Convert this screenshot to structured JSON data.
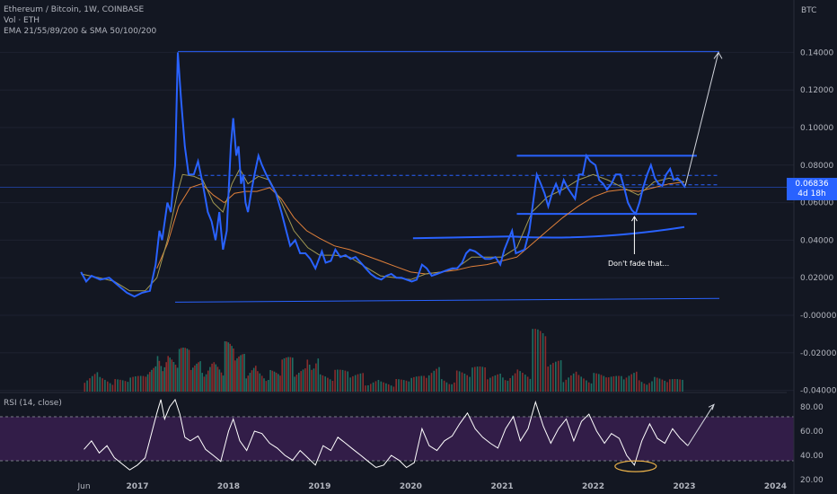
{
  "header": {
    "symbol_line": "Ethereum / Bitcoin, 1W, COINBASE",
    "volume_line": "Vol · ETH",
    "ma_line": "EMA 21/55/89/200 & SMA 50/100/200"
  },
  "rsi_pane": {
    "label": "RSI (14, close)"
  },
  "price_axis": {
    "currency": "BTC"
  },
  "last_price": {
    "value": "0.06836",
    "countdown": "4d 18h"
  },
  "annotation": {
    "text": "Don't fade that..."
  },
  "colors": {
    "background": "#131722",
    "price_line": "#2962ff",
    "ema_orange": "#e0803a",
    "ema_olive": "#a39a52",
    "vol_up": "#1f6e63",
    "vol_down": "#8a2c2c",
    "rsi_line": "#ffffff",
    "rsi_band": "#3b1f52",
    "drawings": "#2962ff",
    "circle": "#e8b04a"
  },
  "chart_data": {
    "type": "line",
    "x_axis_labels": [
      "Jun",
      "2017",
      "2018",
      "2019",
      "2020",
      "2021",
      "2022",
      "2023",
      "2024"
    ],
    "x_axis_dates": [
      "2016-06-01",
      "2017-01-01",
      "2018-01-01",
      "2019-01-01",
      "2020-01-01",
      "2021-01-01",
      "2022-01-01",
      "2023-01-01",
      "2024-01-01"
    ],
    "y_axis_ticks": [
      "0.14000",
      "0.12000",
      "0.10000",
      "0.08000",
      "0.06000",
      "0.04000",
      "0.02000",
      "-0.00000",
      "-0.02000",
      "-0.04000"
    ],
    "y_ticks": [
      0.14,
      0.12,
      0.1,
      0.08,
      0.06,
      0.04,
      0.02,
      0.0,
      -0.02,
      -0.04
    ],
    "rsi_axis_ticks": [
      "80.00",
      "60.00",
      "40.00",
      "20.00"
    ],
    "rsi_ticks": [
      80,
      60,
      40,
      20
    ],
    "rsi_bands": [
      70,
      30
    ],
    "price_series": [
      [
        "2016-05-20",
        0.023
      ],
      [
        "2016-06-10",
        0.018
      ],
      [
        "2016-07-01",
        0.021
      ],
      [
        "2016-08-05",
        0.019
      ],
      [
        "2016-09-10",
        0.02
      ],
      [
        "2016-10-15",
        0.016
      ],
      [
        "2016-11-20",
        0.012
      ],
      [
        "2016-12-20",
        0.01
      ],
      [
        "2017-01-20",
        0.012
      ],
      [
        "2017-02-20",
        0.013
      ],
      [
        "2017-03-15",
        0.027
      ],
      [
        "2017-03-30",
        0.045
      ],
      [
        "2017-04-10",
        0.04
      ],
      [
        "2017-05-01",
        0.06
      ],
      [
        "2017-05-15",
        0.055
      ],
      [
        "2017-06-01",
        0.08
      ],
      [
        "2017-06-12",
        0.14
      ],
      [
        "2017-06-25",
        0.115
      ],
      [
        "2017-07-10",
        0.09
      ],
      [
        "2017-07-25",
        0.075
      ],
      [
        "2017-08-15",
        0.075
      ],
      [
        "2017-09-01",
        0.082
      ],
      [
        "2017-09-20",
        0.07
      ],
      [
        "2017-10-10",
        0.055
      ],
      [
        "2017-10-25",
        0.05
      ],
      [
        "2017-11-10",
        0.04
      ],
      [
        "2017-11-25",
        0.055
      ],
      [
        "2017-12-10",
        0.035
      ],
      [
        "2017-12-25",
        0.045
      ],
      [
        "2018-01-10",
        0.09
      ],
      [
        "2018-01-20",
        0.105
      ],
      [
        "2018-02-01",
        0.085
      ],
      [
        "2018-02-10",
        0.09
      ],
      [
        "2018-02-20",
        0.07
      ],
      [
        "2018-03-01",
        0.075
      ],
      [
        "2018-03-10",
        0.06
      ],
      [
        "2018-03-20",
        0.055
      ],
      [
        "2018-04-01",
        0.065
      ],
      [
        "2018-04-15",
        0.075
      ],
      [
        "2018-05-01",
        0.085
      ],
      [
        "2018-05-15",
        0.08
      ],
      [
        "2018-06-01",
        0.075
      ],
      [
        "2018-06-20",
        0.07
      ],
      [
        "2018-07-10",
        0.065
      ],
      [
        "2018-08-01",
        0.055
      ],
      [
        "2018-08-20",
        0.045
      ],
      [
        "2018-09-05",
        0.037
      ],
      [
        "2018-09-25",
        0.04
      ],
      [
        "2018-10-15",
        0.033
      ],
      [
        "2018-11-05",
        0.033
      ],
      [
        "2018-11-25",
        0.03
      ],
      [
        "2018-12-15",
        0.025
      ],
      [
        "2019-01-10",
        0.034
      ],
      [
        "2019-01-25",
        0.028
      ],
      [
        "2019-02-15",
        0.029
      ],
      [
        "2019-03-05",
        0.035
      ],
      [
        "2019-03-25",
        0.031
      ],
      [
        "2019-04-15",
        0.032
      ],
      [
        "2019-05-05",
        0.03
      ],
      [
        "2019-05-25",
        0.031
      ],
      [
        "2019-06-15",
        0.028
      ],
      [
        "2019-07-05",
        0.025
      ],
      [
        "2019-07-25",
        0.022
      ],
      [
        "2019-08-15",
        0.02
      ],
      [
        "2019-09-05",
        0.019
      ],
      [
        "2019-09-25",
        0.021
      ],
      [
        "2019-10-15",
        0.022
      ],
      [
        "2019-11-05",
        0.02
      ],
      [
        "2019-11-25",
        0.02
      ],
      [
        "2019-12-15",
        0.019
      ],
      [
        "2020-01-05",
        0.018
      ],
      [
        "2020-01-25",
        0.019
      ],
      [
        "2020-02-15",
        0.027
      ],
      [
        "2020-03-05",
        0.025
      ],
      [
        "2020-03-25",
        0.021
      ],
      [
        "2020-04-15",
        0.022
      ],
      [
        "2020-05-05",
        0.023
      ],
      [
        "2020-05-25",
        0.024
      ],
      [
        "2020-06-15",
        0.025
      ],
      [
        "2020-07-05",
        0.025
      ],
      [
        "2020-07-25",
        0.028
      ],
      [
        "2020-08-10",
        0.033
      ],
      [
        "2020-08-25",
        0.035
      ],
      [
        "2020-09-15",
        0.034
      ],
      [
        "2020-10-05",
        0.032
      ],
      [
        "2020-10-25",
        0.03
      ],
      [
        "2020-11-15",
        0.03
      ],
      [
        "2020-12-05",
        0.031
      ],
      [
        "2020-12-25",
        0.027
      ],
      [
        "2021-01-10",
        0.035
      ],
      [
        "2021-01-25",
        0.04
      ],
      [
        "2021-02-10",
        0.045
      ],
      [
        "2021-02-25",
        0.033
      ],
      [
        "2021-03-15",
        0.034
      ],
      [
        "2021-04-01",
        0.035
      ],
      [
        "2021-04-20",
        0.045
      ],
      [
        "2021-05-05",
        0.06
      ],
      [
        "2021-05-20",
        0.075
      ],
      [
        "2021-06-05",
        0.07
      ],
      [
        "2021-06-20",
        0.065
      ],
      [
        "2021-07-05",
        0.058
      ],
      [
        "2021-07-20",
        0.065
      ],
      [
        "2021-08-05",
        0.07
      ],
      [
        "2021-08-20",
        0.065
      ],
      [
        "2021-09-05",
        0.072
      ],
      [
        "2021-09-20",
        0.068
      ],
      [
        "2021-10-05",
        0.065
      ],
      [
        "2021-10-20",
        0.062
      ],
      [
        "2021-11-05",
        0.075
      ],
      [
        "2021-11-20",
        0.075
      ],
      [
        "2021-12-05",
        0.085
      ],
      [
        "2021-12-20",
        0.082
      ],
      [
        "2022-01-10",
        0.08
      ],
      [
        "2022-01-25",
        0.072
      ],
      [
        "2022-02-10",
        0.07
      ],
      [
        "2022-02-25",
        0.067
      ],
      [
        "2022-03-15",
        0.07
      ],
      [
        "2022-04-01",
        0.075
      ],
      [
        "2022-04-20",
        0.075
      ],
      [
        "2022-05-05",
        0.068
      ],
      [
        "2022-05-20",
        0.06
      ],
      [
        "2022-06-05",
        0.056
      ],
      [
        "2022-06-20",
        0.054
      ],
      [
        "2022-07-05",
        0.06
      ],
      [
        "2022-07-20",
        0.068
      ],
      [
        "2022-08-05",
        0.075
      ],
      [
        "2022-08-20",
        0.08
      ],
      [
        "2022-09-05",
        0.073
      ],
      [
        "2022-09-20",
        0.07
      ],
      [
        "2022-10-05",
        0.069
      ],
      [
        "2022-10-20",
        0.075
      ],
      [
        "2022-11-05",
        0.078
      ],
      [
        "2022-11-20",
        0.072
      ],
      [
        "2022-12-05",
        0.073
      ],
      [
        "2022-12-20",
        0.071
      ],
      [
        "2023-01-05",
        0.068
      ]
    ],
    "moving_average_slow": [
      [
        "2017-03-20",
        0.025
      ],
      [
        "2017-05-01",
        0.038
      ],
      [
        "2017-06-15",
        0.058
      ],
      [
        "2017-08-01",
        0.068
      ],
      [
        "2017-09-15",
        0.07
      ],
      [
        "2017-11-01",
        0.064
      ],
      [
        "2017-12-15",
        0.06
      ],
      [
        "2018-01-25",
        0.065
      ],
      [
        "2018-03-10",
        0.066
      ],
      [
        "2018-04-25",
        0.066
      ],
      [
        "2018-06-15",
        0.068
      ],
      [
        "2018-08-01",
        0.062
      ],
      [
        "2018-09-20",
        0.052
      ],
      [
        "2018-11-10",
        0.045
      ],
      [
        "2019-01-01",
        0.041
      ],
      [
        "2019-03-01",
        0.037
      ],
      [
        "2019-05-01",
        0.035
      ],
      [
        "2019-07-01",
        0.032
      ],
      [
        "2019-09-01",
        0.029
      ],
      [
        "2019-11-01",
        0.026
      ],
      [
        "2020-01-01",
        0.023
      ],
      [
        "2020-03-01",
        0.022
      ],
      [
        "2020-05-01",
        0.023
      ],
      [
        "2020-07-01",
        0.024
      ],
      [
        "2020-09-01",
        0.026
      ],
      [
        "2020-11-01",
        0.027
      ],
      [
        "2021-01-01",
        0.029
      ],
      [
        "2021-03-01",
        0.031
      ],
      [
        "2021-05-01",
        0.038
      ],
      [
        "2021-07-01",
        0.045
      ],
      [
        "2021-09-01",
        0.052
      ],
      [
        "2021-11-01",
        0.058
      ],
      [
        "2022-01-01",
        0.063
      ],
      [
        "2022-03-01",
        0.066
      ],
      [
        "2022-05-01",
        0.067
      ],
      [
        "2022-07-01",
        0.066
      ],
      [
        "2022-09-01",
        0.068
      ],
      [
        "2022-11-01",
        0.07
      ],
      [
        "2023-01-01",
        0.071
      ]
    ],
    "moving_average_fast": [
      [
        "2016-05-20",
        0.022
      ],
      [
        "2016-08-01",
        0.02
      ],
      [
        "2016-10-01",
        0.018
      ],
      [
        "2016-12-01",
        0.013
      ],
      [
        "2017-02-01",
        0.013
      ],
      [
        "2017-03-20",
        0.02
      ],
      [
        "2017-05-01",
        0.04
      ],
      [
        "2017-06-10",
        0.065
      ],
      [
        "2017-07-01",
        0.075
      ],
      [
        "2017-08-15",
        0.074
      ],
      [
        "2017-09-20",
        0.072
      ],
      [
        "2017-11-01",
        0.06
      ],
      [
        "2017-12-10",
        0.055
      ],
      [
        "2018-01-15",
        0.07
      ],
      [
        "2018-02-15",
        0.078
      ],
      [
        "2018-03-20",
        0.07
      ],
      [
        "2018-05-01",
        0.074
      ],
      [
        "2018-06-15",
        0.072
      ],
      [
        "2018-08-01",
        0.06
      ],
      [
        "2018-09-20",
        0.045
      ],
      [
        "2018-11-15",
        0.036
      ],
      [
        "2019-01-01",
        0.032
      ],
      [
        "2019-03-01",
        0.032
      ],
      [
        "2019-05-01",
        0.031
      ],
      [
        "2019-07-01",
        0.026
      ],
      [
        "2019-09-01",
        0.021
      ],
      [
        "2019-11-01",
        0.02
      ],
      [
        "2020-01-01",
        0.019
      ],
      [
        "2020-03-01",
        0.022
      ],
      [
        "2020-05-01",
        0.023
      ],
      [
        "2020-07-01",
        0.025
      ],
      [
        "2020-09-01",
        0.031
      ],
      [
        "2020-11-01",
        0.031
      ],
      [
        "2021-01-01",
        0.031
      ],
      [
        "2021-03-01",
        0.036
      ],
      [
        "2021-05-01",
        0.055
      ],
      [
        "2021-07-01",
        0.063
      ],
      [
        "2021-09-01",
        0.067
      ],
      [
        "2021-11-01",
        0.072
      ],
      [
        "2022-01-01",
        0.075
      ],
      [
        "2022-03-01",
        0.072
      ],
      [
        "2022-05-01",
        0.068
      ],
      [
        "2022-07-01",
        0.064
      ],
      [
        "2022-09-01",
        0.071
      ],
      [
        "2022-11-01",
        0.073
      ],
      [
        "2023-01-01",
        0.071
      ]
    ],
    "rsi_series": [
      [
        "2016-06-01",
        45
      ],
      [
        "2016-07-01",
        52
      ],
      [
        "2016-08-01",
        42
      ],
      [
        "2016-09-01",
        48
      ],
      [
        "2016-10-01",
        38
      ],
      [
        "2016-11-01",
        33
      ],
      [
        "2016-12-01",
        28
      ],
      [
        "2017-01-01",
        32
      ],
      [
        "2017-02-01",
        38
      ],
      [
        "2017-03-01",
        60
      ],
      [
        "2017-03-20",
        75
      ],
      [
        "2017-04-05",
        86
      ],
      [
        "2017-04-20",
        70
      ],
      [
        "2017-05-10",
        80
      ],
      [
        "2017-06-01",
        86
      ],
      [
        "2017-06-20",
        74
      ],
      [
        "2017-07-10",
        55
      ],
      [
        "2017-08-01",
        52
      ],
      [
        "2017-09-01",
        56
      ],
      [
        "2017-10-01",
        45
      ],
      [
        "2017-11-01",
        40
      ],
      [
        "2017-12-01",
        35
      ],
      [
        "2018-01-01",
        60
      ],
      [
        "2018-01-20",
        70
      ],
      [
        "2018-02-15",
        52
      ],
      [
        "2018-03-15",
        44
      ],
      [
        "2018-04-15",
        60
      ],
      [
        "2018-05-15",
        58
      ],
      [
        "2018-06-15",
        50
      ],
      [
        "2018-07-15",
        46
      ],
      [
        "2018-08-15",
        40
      ],
      [
        "2018-09-15",
        36
      ],
      [
        "2018-10-15",
        44
      ],
      [
        "2018-11-15",
        38
      ],
      [
        "2018-12-15",
        32
      ],
      [
        "2019-01-15",
        48
      ],
      [
        "2019-02-15",
        44
      ],
      [
        "2019-03-15",
        55
      ],
      [
        "2019-04-15",
        50
      ],
      [
        "2019-05-15",
        45
      ],
      [
        "2019-06-15",
        40
      ],
      [
        "2019-07-15",
        35
      ],
      [
        "2019-08-15",
        30
      ],
      [
        "2019-09-15",
        32
      ],
      [
        "2019-10-15",
        40
      ],
      [
        "2019-11-15",
        36
      ],
      [
        "2019-12-15",
        30
      ],
      [
        "2020-01-15",
        34
      ],
      [
        "2020-02-15",
        62
      ],
      [
        "2020-03-15",
        48
      ],
      [
        "2020-04-15",
        44
      ],
      [
        "2020-05-15",
        52
      ],
      [
        "2020-06-15",
        56
      ],
      [
        "2020-07-15",
        66
      ],
      [
        "2020-08-15",
        75
      ],
      [
        "2020-09-15",
        62
      ],
      [
        "2020-10-15",
        55
      ],
      [
        "2020-11-15",
        50
      ],
      [
        "2020-12-15",
        46
      ],
      [
        "2021-01-15",
        62
      ],
      [
        "2021-02-15",
        72
      ],
      [
        "2021-03-15",
        52
      ],
      [
        "2021-04-15",
        62
      ],
      [
        "2021-05-15",
        84
      ],
      [
        "2021-06-15",
        64
      ],
      [
        "2021-07-15",
        50
      ],
      [
        "2021-08-15",
        62
      ],
      [
        "2021-09-15",
        70
      ],
      [
        "2021-10-15",
        52
      ],
      [
        "2021-11-15",
        68
      ],
      [
        "2021-12-15",
        74
      ],
      [
        "2022-01-15",
        60
      ],
      [
        "2022-02-15",
        50
      ],
      [
        "2022-03-15",
        58
      ],
      [
        "2022-04-15",
        54
      ],
      [
        "2022-05-15",
        40
      ],
      [
        "2022-06-15",
        32
      ],
      [
        "2022-07-15",
        52
      ],
      [
        "2022-08-15",
        66
      ],
      [
        "2022-09-15",
        54
      ],
      [
        "2022-10-15",
        50
      ],
      [
        "2022-11-15",
        62
      ],
      [
        "2022-12-15",
        54
      ],
      [
        "2023-01-15",
        48
      ]
    ],
    "volume_bars": [
      [
        "2016-06-01",
        0.4
      ],
      [
        "2016-08-01",
        0.3
      ],
      [
        "2016-10-01",
        0.2
      ],
      [
        "2016-12-01",
        0.25
      ],
      [
        "2017-02-01",
        0.45
      ],
      [
        "2017-03-20",
        0.9
      ],
      [
        "2017-05-01",
        0.6
      ],
      [
        "2017-06-15",
        0.7
      ],
      [
        "2017-08-01",
        0.5
      ],
      [
        "2017-09-15",
        0.65
      ],
      [
        "2017-11-01",
        0.55
      ],
      [
        "2017-12-15",
        0.8
      ],
      [
        "2018-01-25",
        0.6
      ],
      [
        "2018-03-10",
        0.5
      ],
      [
        "2018-04-25",
        0.45
      ],
      [
        "2018-06-15",
        0.35
      ],
      [
        "2018-08-01",
        0.55
      ],
      [
        "2018-09-20",
        0.4
      ],
      [
        "2018-11-10",
        0.9
      ],
      [
        "2019-01-01",
        0.3
      ],
      [
        "2019-03-01",
        0.35
      ],
      [
        "2019-05-01",
        0.3
      ],
      [
        "2019-07-01",
        0.25
      ],
      [
        "2019-09-01",
        0.2
      ],
      [
        "2019-11-01",
        0.2
      ],
      [
        "2020-01-01",
        0.25
      ],
      [
        "2020-03-01",
        0.45
      ],
      [
        "2020-05-01",
        0.3
      ],
      [
        "2020-07-01",
        0.35
      ],
      [
        "2020-09-01",
        0.4
      ],
      [
        "2020-11-01",
        0.3
      ],
      [
        "2021-01-01",
        0.45
      ],
      [
        "2021-03-01",
        0.4
      ],
      [
        "2021-05-01",
        1.0
      ],
      [
        "2021-07-01",
        0.5
      ],
      [
        "2021-09-01",
        0.4
      ],
      [
        "2021-11-01",
        0.35
      ],
      [
        "2022-01-01",
        0.3
      ],
      [
        "2022-03-01",
        0.25
      ],
      [
        "2022-05-01",
        0.35
      ],
      [
        "2022-07-01",
        0.3
      ],
      [
        "2022-09-01",
        0.25
      ],
      [
        "2022-11-01",
        0.2
      ],
      [
        "2023-01-01",
        0.15
      ]
    ]
  }
}
